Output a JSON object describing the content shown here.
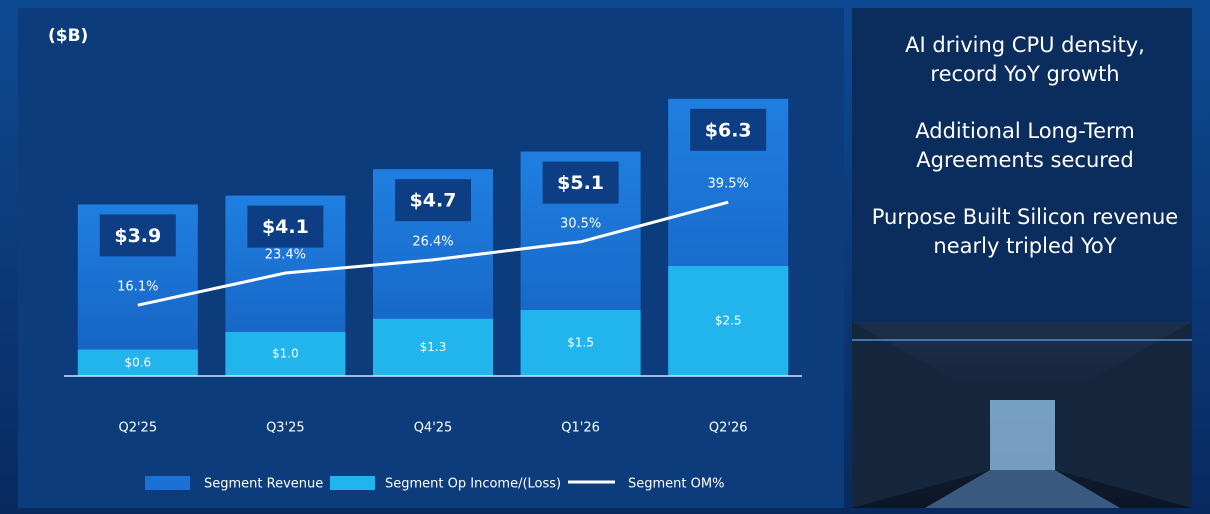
{
  "chart_data": {
    "type": "bar",
    "title": "($B)",
    "categories": [
      "Q2'25",
      "Q3'25",
      "Q4'25",
      "Q1'26",
      "Q2'26"
    ],
    "series": [
      {
        "name": "Segment Revenue",
        "color": "#1b72d4",
        "values": [
          3.9,
          4.1,
          4.7,
          5.1,
          6.3
        ],
        "value_labels": [
          "$3.9",
          "$4.1",
          "$4.7",
          "$5.1",
          "$6.3"
        ]
      },
      {
        "name": "Segment Op Income/(Loss)",
        "color": "#22b4ec",
        "values": [
          0.6,
          1.0,
          1.3,
          1.5,
          2.5
        ],
        "value_labels": [
          "$0.6",
          "$1.0",
          "$1.3",
          "$1.5",
          "$2.5"
        ]
      },
      {
        "name": "Segment OM%",
        "type": "line",
        "axis": "y2",
        "color": "#ffffff",
        "values": [
          16.1,
          23.4,
          26.4,
          30.5,
          39.5
        ],
        "value_labels": [
          "16.1%",
          "23.4%",
          "26.4%",
          "30.5%",
          "39.5%"
        ]
      }
    ],
    "ylim": [
      0,
      7
    ],
    "y2lim": [
      0,
      70
    ],
    "grid": false
  },
  "side_panel": {
    "points": [
      "AI driving CPU density,",
      "record YoY growth",
      "Additional Long-Term",
      "Agreements secured",
      "Purpose Built Silicon revenue",
      "nearly tripled  YoY"
    ]
  }
}
